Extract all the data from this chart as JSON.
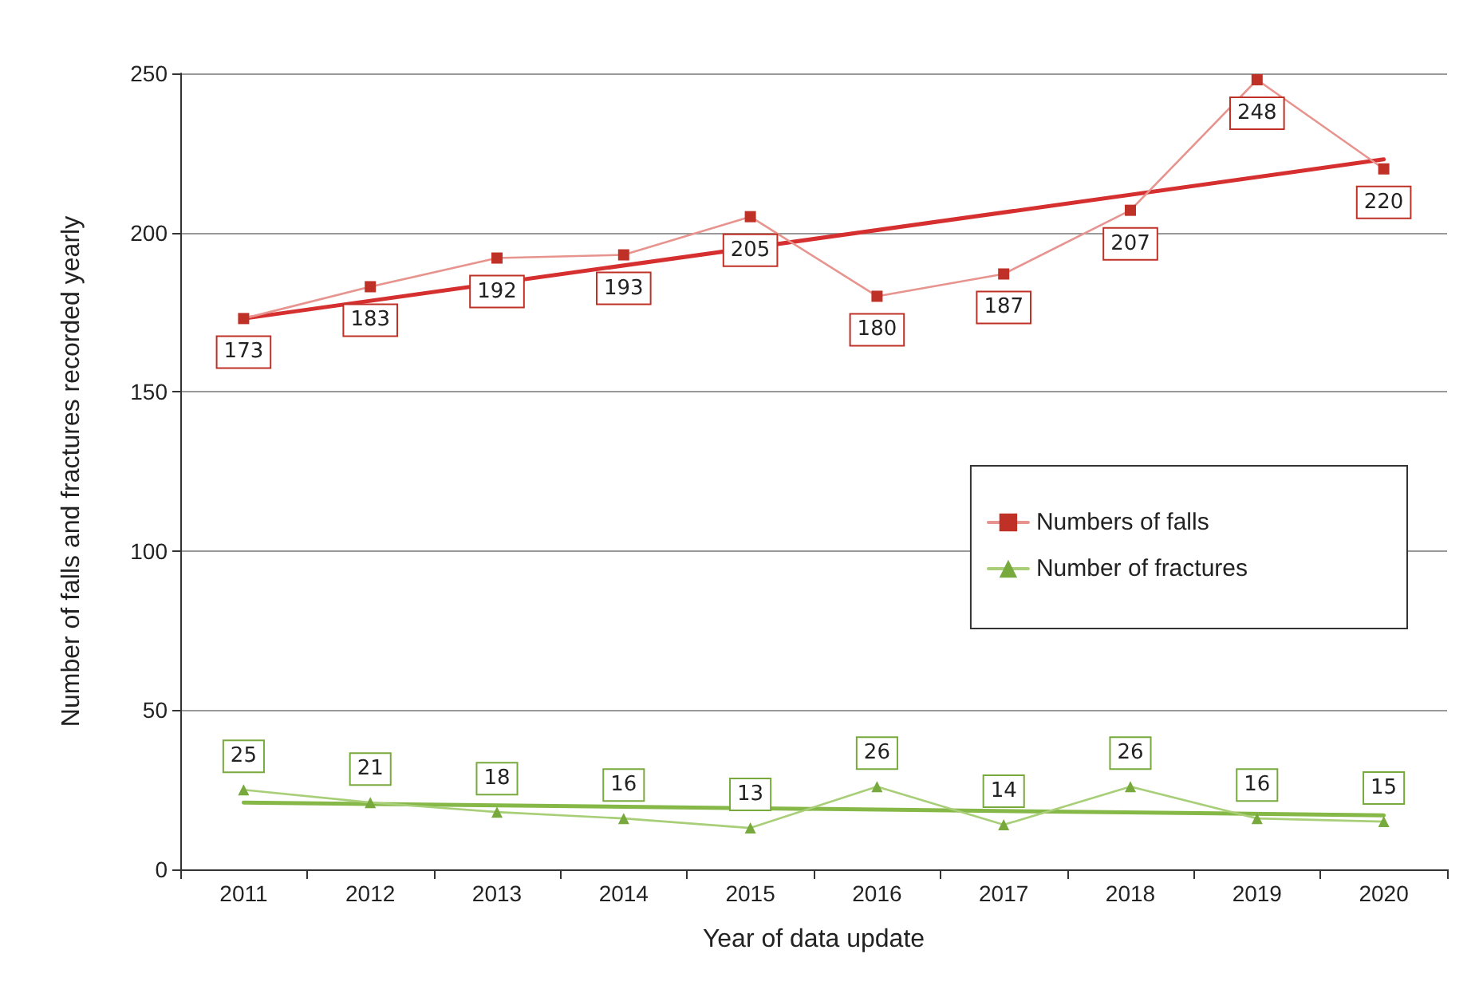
{
  "chart_data": {
    "type": "line",
    "xlabel": "Year of data update",
    "ylabel": "Number of falls and fractures recorded yearly",
    "categories": [
      "2011",
      "2012",
      "2013",
      "2014",
      "2015",
      "2016",
      "2017",
      "2018",
      "2019",
      "2020"
    ],
    "series": [
      {
        "name": "Numbers of falls",
        "color": "#e8948e",
        "marker": "square",
        "values": [
          173,
          183,
          192,
          193,
          205,
          180,
          187,
          207,
          248,
          220
        ],
        "value_labels": [
          "173",
          "183",
          "192",
          "193",
          "205",
          "180",
          "187",
          "207",
          "248",
          "220"
        ]
      },
      {
        "name": "Number of fractures",
        "color": "#a8cf78",
        "marker": "triangle",
        "values": [
          25,
          21,
          18,
          16,
          13,
          26,
          14,
          26,
          16,
          15
        ],
        "value_labels": [
          "25",
          "21",
          "18",
          "16",
          "13",
          "26",
          "14",
          "26",
          "16",
          "15"
        ]
      },
      {
        "type": "line",
        "color": "#d62f2f",
        "marker": "none",
        "values": [
          173,
          null,
          null,
          null,
          null,
          null,
          null,
          null,
          null,
          223
        ]
      },
      {
        "type": "line",
        "color": "#86b848",
        "marker": "none",
        "values": [
          21,
          null,
          null,
          null,
          null,
          null,
          null,
          null,
          null,
          17
        ]
      }
    ],
    "ylim": [
      0,
      250
    ],
    "yticks": [
      0,
      50,
      100,
      150,
      200,
      250
    ],
    "grid": "y",
    "legend": "right",
    "line_style": "solid"
  }
}
